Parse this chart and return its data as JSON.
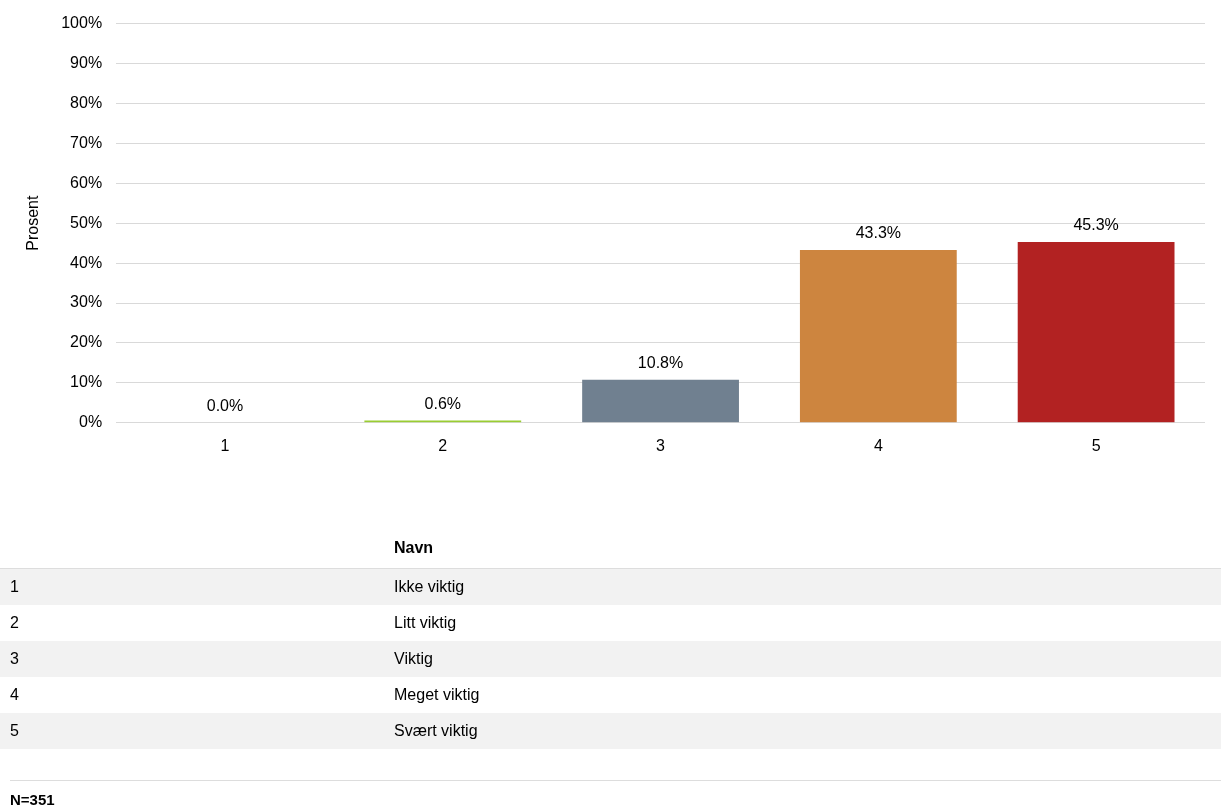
{
  "chart_data": {
    "type": "bar",
    "ylabel": "Prosent",
    "categories": [
      "1",
      "2",
      "3",
      "4",
      "5"
    ],
    "values": [
      0,
      0.6,
      10.8,
      43.3,
      45.3
    ],
    "colors": [
      "#a9a9a9",
      "#9acd32",
      "#708090",
      "#cd853f",
      "#b22222"
    ],
    "value_labels": [
      "0.0%",
      "0.6%",
      "10.8%",
      "43.3%",
      "45.3%"
    ],
    "ylim": [
      0,
      100
    ],
    "yticks": [
      {
        "value": 0,
        "label": "0%"
      },
      {
        "value": 10,
        "label": "10%"
      },
      {
        "value": 20,
        "label": "20%"
      },
      {
        "value": 30,
        "label": "30%"
      },
      {
        "value": 40,
        "label": "40%"
      },
      {
        "value": 50,
        "label": "50%"
      },
      {
        "value": 60,
        "label": "60%"
      },
      {
        "value": 70,
        "label": "70%"
      },
      {
        "value": 80,
        "label": "80%"
      },
      {
        "value": 90,
        "label": "90%"
      },
      {
        "value": 100,
        "label": "100%"
      }
    ],
    "grid": "y",
    "legend": false,
    "annotations": [
      "Navn",
      "Ikke viktig",
      "Litt viktig",
      "Viktig",
      "Meget viktig",
      "Svært viktig",
      "N=351"
    ]
  }
}
